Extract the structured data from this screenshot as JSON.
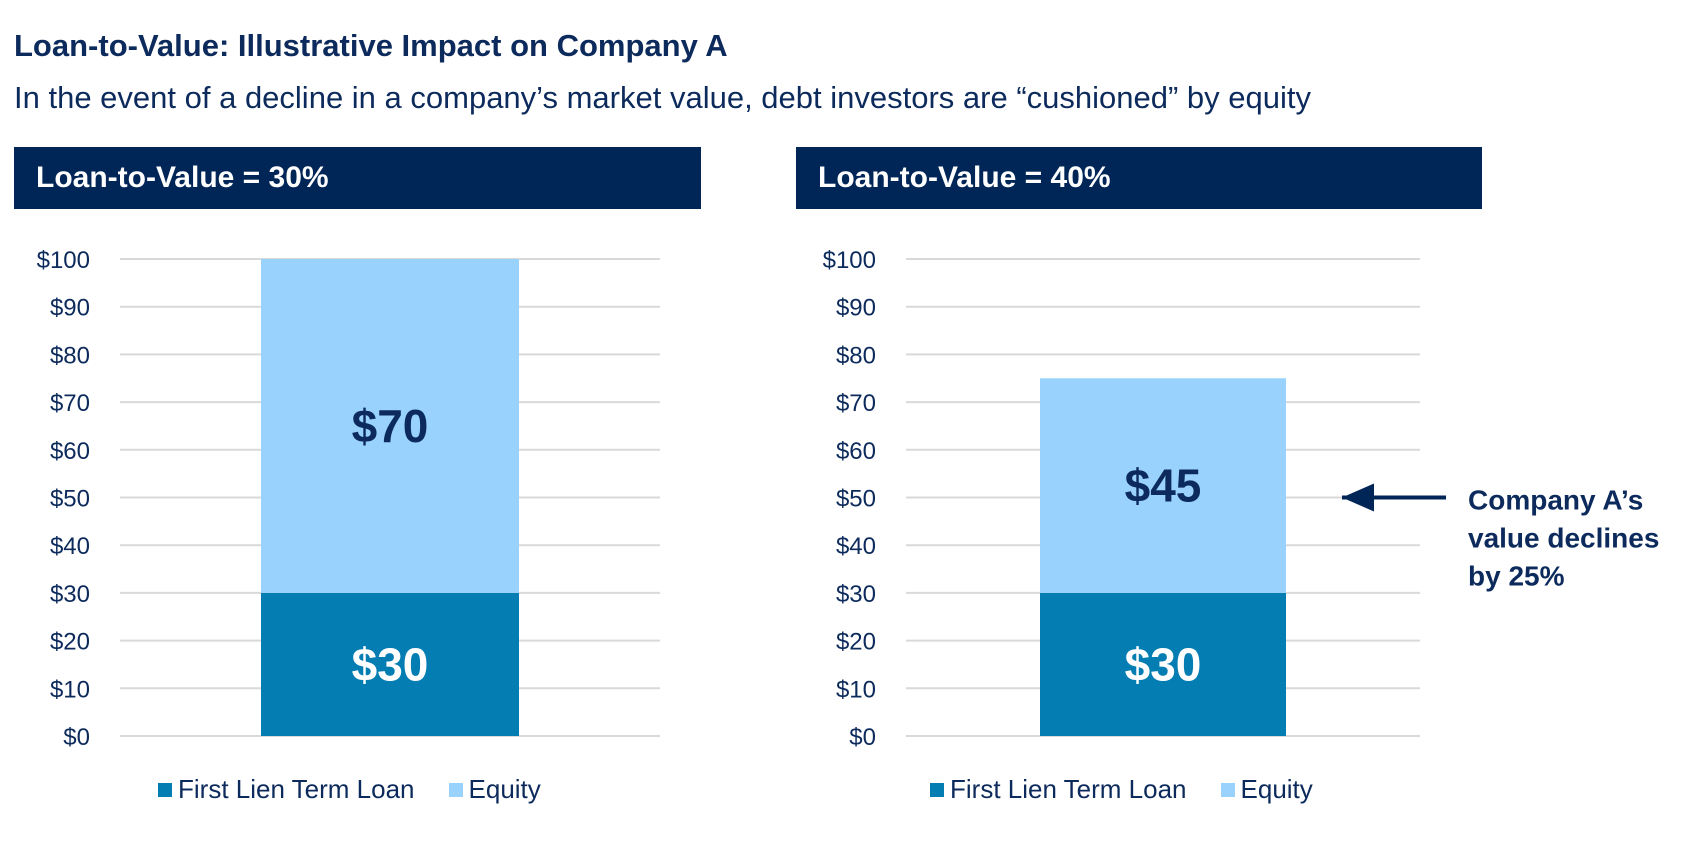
{
  "title": "Loan-to-Value: Illustrative Impact on Company A",
  "subtitle": "In the event of a decline in a company’s market value, debt investors are “cushioned” by equity",
  "colors": {
    "header_bg": "#002657",
    "loan": "#047db3",
    "equity": "#99d3fd",
    "text": "#0c2a5b",
    "grid": "#d9d9d9"
  },
  "annotation": {
    "lines": [
      "Company A’s",
      "value declines",
      "by 25%"
    ],
    "points_to_value": 50,
    "icon": "arrow-left-icon"
  },
  "chart_data": [
    {
      "type": "bar",
      "stacked": true,
      "header": "Loan-to-Value = 30%",
      "categories": [
        ""
      ],
      "ylim": [
        0,
        100
      ],
      "yticks": [
        "$0",
        "$10",
        "$20",
        "$30",
        "$40",
        "$50",
        "$60",
        "$70",
        "$80",
        "$90",
        "$100"
      ],
      "grid": true,
      "legend": "bottom",
      "series": [
        {
          "name": "First Lien Term Loan",
          "values": [
            30
          ],
          "labels": [
            "$30"
          ],
          "color": "#047db3",
          "label_color": "#ffffff"
        },
        {
          "name": "Equity",
          "values": [
            70
          ],
          "labels": [
            "$70"
          ],
          "color": "#99d3fd",
          "label_color": "#0c2a5b"
        }
      ]
    },
    {
      "type": "bar",
      "stacked": true,
      "header": "Loan-to-Value = 40%",
      "categories": [
        ""
      ],
      "ylim": [
        0,
        100
      ],
      "yticks": [
        "$0",
        "$10",
        "$20",
        "$30",
        "$40",
        "$50",
        "$60",
        "$70",
        "$80",
        "$90",
        "$100"
      ],
      "grid": true,
      "legend": "bottom",
      "series": [
        {
          "name": "First Lien Term Loan",
          "values": [
            30
          ],
          "labels": [
            "$30"
          ],
          "color": "#047db3",
          "label_color": "#ffffff"
        },
        {
          "name": "Equity",
          "values": [
            45
          ],
          "labels": [
            "$45"
          ],
          "color": "#99d3fd",
          "label_color": "#0c2a5b"
        }
      ]
    }
  ]
}
